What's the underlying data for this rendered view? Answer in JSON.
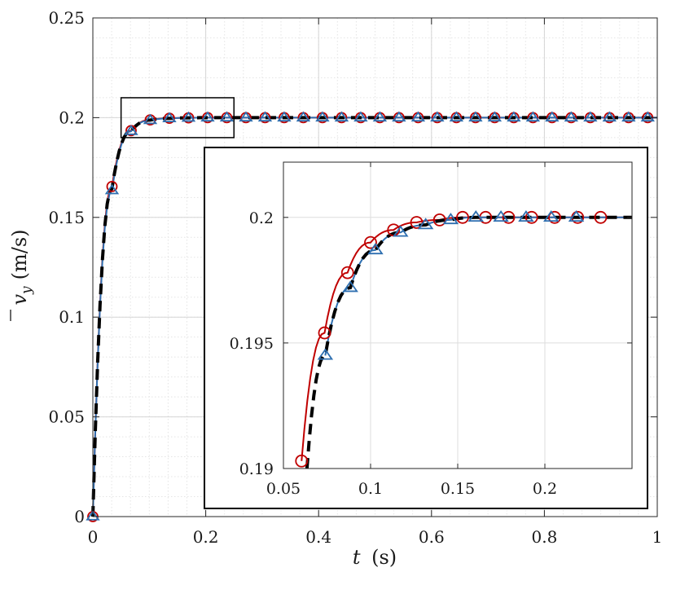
{
  "chart_data": {
    "type": "line",
    "xlabel_symbol": "t",
    "xlabel_unit": "(s)",
    "ylabel_symbol": "v",
    "ylabel_subscript": "y",
    "ylabel_unit": "(m/s)",
    "xlim": [
      0,
      1
    ],
    "ylim": [
      0,
      0.25
    ],
    "xticks": [
      0,
      0.2,
      0.4,
      0.6,
      0.8,
      1
    ],
    "xtick_labels": [
      "0",
      "0.2",
      "0.4",
      "0.6",
      "0.8",
      "1"
    ],
    "yticks": [
      0,
      0.05,
      0.1,
      0.15,
      0.2,
      0.25
    ],
    "ytick_labels": [
      "0",
      "0.05",
      "0.1",
      "0.15",
      "0.2",
      "0.25"
    ],
    "grid": true,
    "minor_grid": true,
    "legend": "none",
    "colors": {
      "series_a": "#c00000",
      "series_b": "#2e6fb0",
      "series_c": "#000000"
    },
    "series": [
      {
        "key": "a",
        "style": "solid",
        "marker": "circle",
        "color": "#c00000",
        "x": [
          0,
          0.0339,
          0.0678,
          0.1017,
          0.1356,
          0.1695,
          0.2034,
          0.2373,
          0.2712,
          0.3051,
          0.339,
          0.3729,
          0.4068,
          0.4407,
          0.4746,
          0.5085,
          0.5424,
          0.5763,
          0.6102,
          0.6441,
          0.678,
          0.7119,
          0.7458,
          0.7797,
          0.8136,
          0.8475,
          0.8814,
          0.9153,
          0.9492,
          0.9831
        ],
        "y": [
          0,
          0.1655,
          0.1935,
          0.1989,
          0.1997,
          0.1999,
          0.2,
          0.2,
          0.2,
          0.2,
          0.2,
          0.2,
          0.2,
          0.2,
          0.2,
          0.2,
          0.2,
          0.2,
          0.2,
          0.2,
          0.2,
          0.2,
          0.2,
          0.2,
          0.2,
          0.2,
          0.2,
          0.2,
          0.2,
          0.2
        ]
      },
      {
        "key": "b",
        "style": "solid",
        "marker": "triangle",
        "color": "#2e6fb0",
        "x": [
          0,
          0.0339,
          0.0678,
          0.1017,
          0.1356,
          0.1695,
          0.2034,
          0.2373,
          0.2712,
          0.3051,
          0.339,
          0.3729,
          0.4068,
          0.4407,
          0.4746,
          0.5085,
          0.5424,
          0.5763,
          0.6102,
          0.6441,
          0.678,
          0.7119,
          0.7458,
          0.7797,
          0.8136,
          0.8475,
          0.8814,
          0.9153,
          0.9492,
          0.9831
        ],
        "y": [
          0,
          0.1635,
          0.1932,
          0.1987,
          0.1996,
          0.1999,
          0.2,
          0.2,
          0.2,
          0.2,
          0.2,
          0.2,
          0.2,
          0.2,
          0.2,
          0.2,
          0.2,
          0.2,
          0.2,
          0.2,
          0.2,
          0.2,
          0.2,
          0.2,
          0.2,
          0.2,
          0.2,
          0.2,
          0.2,
          0.2
        ]
      },
      {
        "key": "c",
        "style": "dashed",
        "marker": "none",
        "color": "#000000"
      }
    ],
    "zoom_box": {
      "x": [
        0.05,
        0.25
      ],
      "y": [
        0.19,
        0.201
      ]
    },
    "inset": {
      "xlim": [
        0.05,
        0.25
      ],
      "ylim": [
        0.19,
        0.2022
      ],
      "xticks": [
        0.05,
        0.1,
        0.15,
        0.2
      ],
      "xtick_labels": [
        "0.05",
        "0.1",
        "0.15",
        "0.2"
      ],
      "yticks": [
        0.19,
        0.195,
        0.2
      ],
      "ytick_labels": [
        "0.19",
        "0.195",
        "0.2"
      ],
      "grid": true,
      "series": [
        {
          "key": "a",
          "marker": "circle",
          "color": "#c00000",
          "x": [
            0.0604,
            0.0736,
            0.0868,
            0.1,
            0.1132,
            0.1264,
            0.1396,
            0.1528,
            0.166,
            0.1792,
            0.1924,
            0.2056,
            0.2188,
            0.232
          ],
          "y": [
            0.1903,
            0.1954,
            0.1978,
            0.199,
            0.1995,
            0.1998,
            0.1999,
            0.2,
            0.2,
            0.2,
            0.2,
            0.2,
            0.2,
            0.2
          ]
        },
        {
          "key": "b",
          "marker": "triangle",
          "color": "#2e6fb0",
          "x": [
            0.074,
            0.0884,
            0.1028,
            0.1172,
            0.1316,
            0.146,
            0.1604,
            0.1748,
            0.1892,
            0.2036,
            0.218
          ],
          "y": [
            0.1945,
            0.1972,
            0.1987,
            0.1994,
            0.1997,
            0.1999,
            0.2,
            0.2,
            0.2,
            0.2,
            0.2
          ]
        }
      ]
    }
  }
}
